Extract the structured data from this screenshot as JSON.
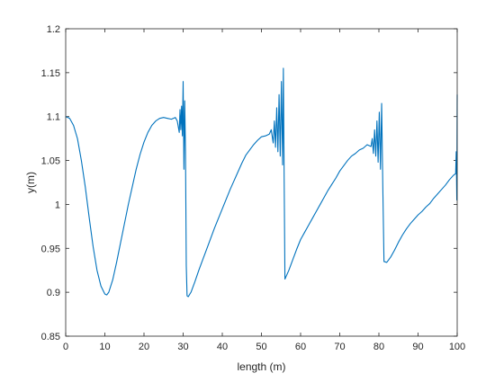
{
  "chart_data": {
    "type": "line",
    "title": "",
    "xlabel": "length (m)",
    "ylabel": "y(m)",
    "xlim": [
      0,
      100
    ],
    "ylim": [
      0.85,
      1.2
    ],
    "xticks": [
      0,
      10,
      20,
      30,
      40,
      50,
      60,
      70,
      80,
      90,
      100
    ],
    "xtick_labels": [
      "0",
      "10",
      "20",
      "30",
      "40",
      "50",
      "60",
      "70",
      "80",
      "90",
      "100"
    ],
    "yticks": [
      0.85,
      0.9,
      0.95,
      1.0,
      1.05,
      1.1,
      1.15,
      1.2
    ],
    "ytick_labels": [
      "0.85",
      "0.9",
      "0.95",
      "1",
      "1.05",
      "1.1",
      "1.15",
      "1.2"
    ],
    "grid": false,
    "legend": "none",
    "series": [
      {
        "color": "#0072bd",
        "x": [
          0,
          1,
          2,
          3,
          4,
          5,
          6,
          7,
          8,
          9,
          10,
          10.5,
          11,
          12,
          13,
          14,
          15,
          16,
          17,
          18,
          19,
          20,
          21,
          22,
          23,
          24,
          25,
          26,
          27,
          28,
          28.5,
          29,
          29.2,
          29.4,
          29.6,
          29.8,
          30,
          30.2,
          30.4,
          30.6,
          30.8,
          31,
          31.3,
          32,
          33,
          34,
          35,
          36,
          37,
          38,
          39,
          40,
          41,
          42,
          43,
          44,
          45,
          46,
          47,
          48,
          49,
          50,
          51,
          52,
          52.5,
          53,
          53.3,
          53.6,
          53.9,
          54.2,
          54.5,
          54.8,
          55.1,
          55.4,
          55.6,
          55.8,
          56,
          56.3,
          57,
          58,
          59,
          60,
          61,
          62,
          63,
          64,
          65,
          66,
          67,
          68,
          69,
          70,
          71,
          72,
          73,
          74,
          75,
          76,
          77,
          78,
          78.3,
          78.6,
          78.9,
          79.2,
          79.5,
          79.8,
          80.1,
          80.4,
          80.7,
          81,
          81.3,
          82,
          83,
          84,
          85,
          86,
          87,
          88,
          89,
          90,
          91,
          92,
          93,
          94,
          95,
          96,
          97,
          98,
          99,
          99.6,
          99.75,
          99.9,
          100
        ],
        "y": [
          1.1,
          1.098,
          1.09,
          1.075,
          1.05,
          1.02,
          0.985,
          0.952,
          0.925,
          0.907,
          0.898,
          0.897,
          0.9,
          0.914,
          0.934,
          0.956,
          0.978,
          1.0,
          1.02,
          1.04,
          1.057,
          1.071,
          1.082,
          1.09,
          1.095,
          1.098,
          1.099,
          1.098,
          1.097,
          1.099,
          1.095,
          1.082,
          1.108,
          1.085,
          1.112,
          1.078,
          1.14,
          1.04,
          1.118,
          1.06,
          0.93,
          0.896,
          0.895,
          0.9,
          0.912,
          0.925,
          0.937,
          0.949,
          0.961,
          0.973,
          0.984,
          0.995,
          1.006,
          1.017,
          1.027,
          1.037,
          1.047,
          1.056,
          1.062,
          1.068,
          1.073,
          1.077,
          1.078,
          1.08,
          1.085,
          1.07,
          1.095,
          1.065,
          1.11,
          1.06,
          1.125,
          1.055,
          1.14,
          1.045,
          1.155,
          1.03,
          0.915,
          0.918,
          0.925,
          0.937,
          0.949,
          0.96,
          0.968,
          0.976,
          0.984,
          0.992,
          1.0,
          1.008,
          1.016,
          1.023,
          1.03,
          1.038,
          1.044,
          1.05,
          1.055,
          1.058,
          1.062,
          1.064,
          1.068,
          1.066,
          1.075,
          1.058,
          1.085,
          1.055,
          1.095,
          1.048,
          1.105,
          1.04,
          1.115,
          1.02,
          0.935,
          0.934,
          0.94,
          0.948,
          0.957,
          0.965,
          0.972,
          0.978,
          0.983,
          0.988,
          0.992,
          0.997,
          1.001,
          1.007,
          1.012,
          1.017,
          1.022,
          1.028,
          1.033,
          1.035,
          1.06,
          1.005,
          1.125
        ]
      }
    ]
  }
}
